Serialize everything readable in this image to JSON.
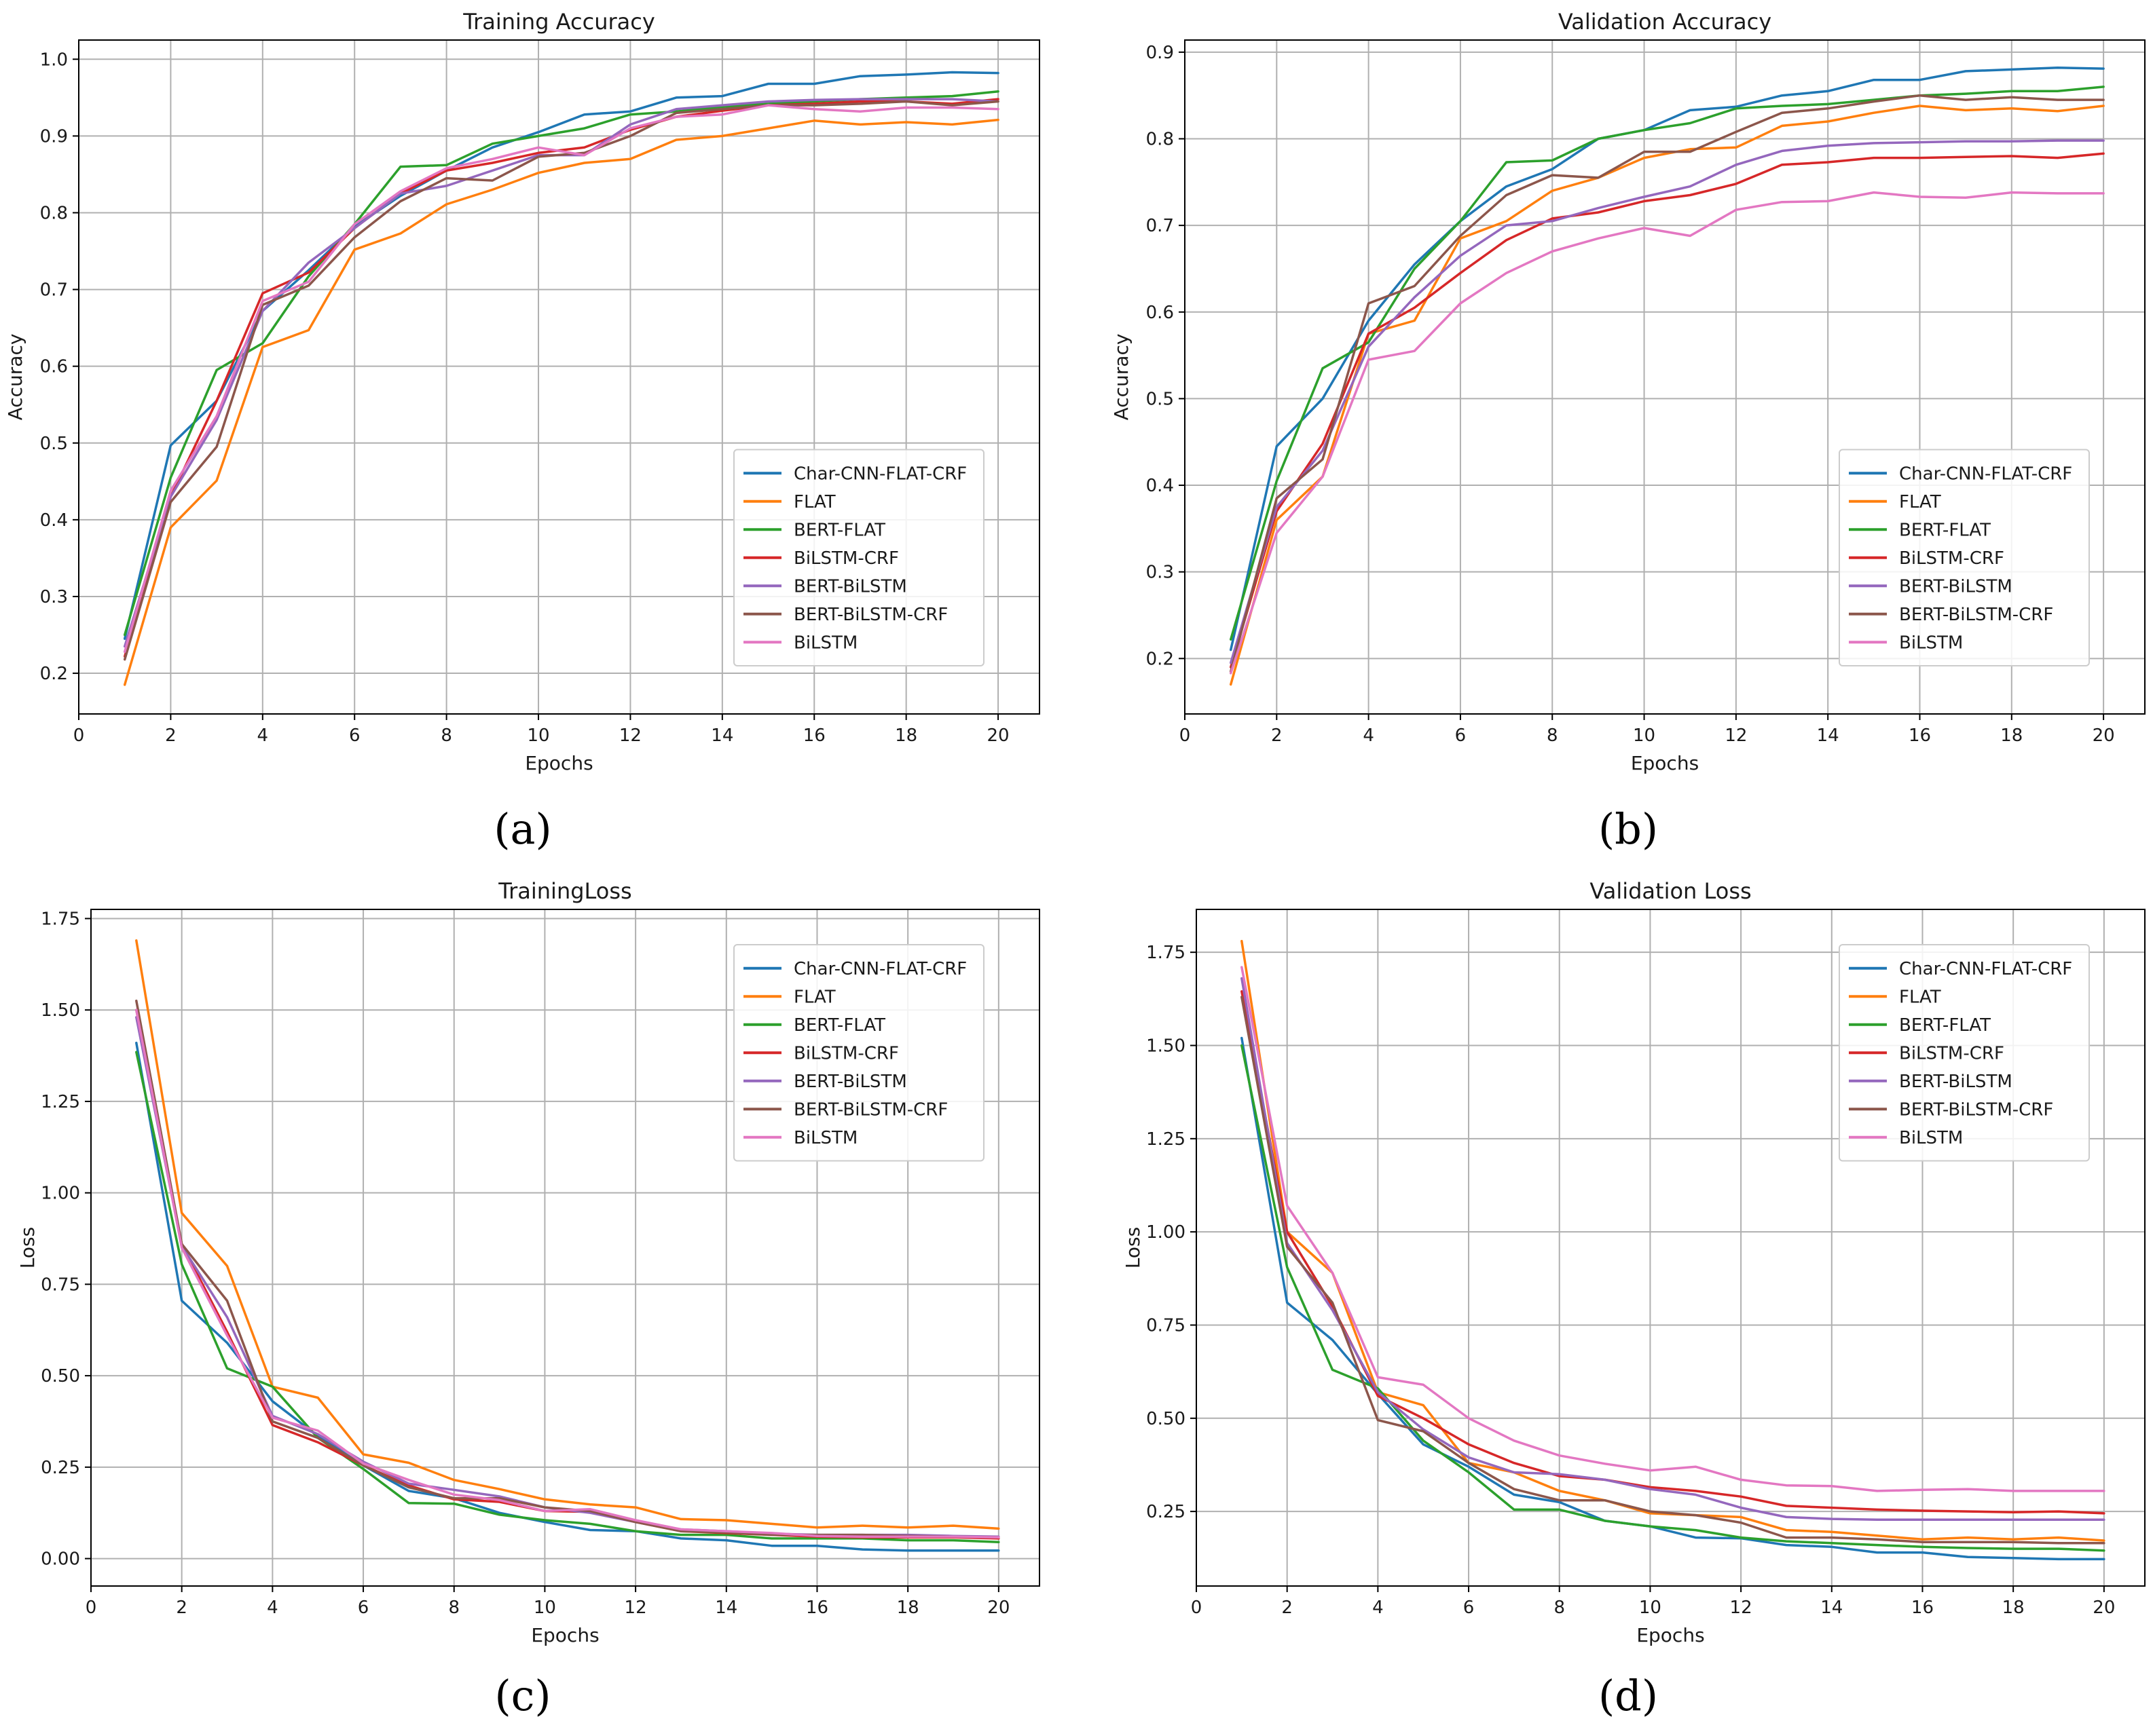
{
  "colors": {
    "Char-CNN-FLAT-CRF": "#1f77b4",
    "FLAT": "#ff7f0e",
    "BERT-FLAT": "#2ca02c",
    "BiLSTM-CRF": "#d62728",
    "BERT-BiLSTM": "#9467bd",
    "BERT-BiLSTM-CRF": "#8c564b",
    "BiLSTM": "#e377c2"
  },
  "panel_labels": [
    "(a)",
    "(b)",
    "(c)",
    "(d)"
  ],
  "chart_data": [
    {
      "type": "line",
      "title": "Training Accuracy",
      "xlabel": "Epochs",
      "ylabel": "Accuracy",
      "xlim": [
        0,
        20.9
      ],
      "ylim": [
        0.147,
        1.025
      ],
      "xticks": [
        0,
        2,
        4,
        6,
        8,
        10,
        12,
        14,
        16,
        18,
        20
      ],
      "yticks": [
        0.2,
        0.3,
        0.4,
        0.5,
        0.6,
        0.7,
        0.8,
        0.9,
        1.0
      ],
      "ytick_labels": [
        "0.2",
        "0.3",
        "0.4",
        "0.5",
        "0.6",
        "0.7",
        "0.8",
        "0.9",
        "1.0"
      ],
      "legend_position": "center-right",
      "x": [
        1,
        2,
        3,
        4,
        5,
        6,
        7,
        8,
        9,
        10,
        11,
        12,
        13,
        14,
        15,
        16,
        17,
        18,
        19,
        20
      ],
      "series": [
        {
          "name": "Char-CNN-FLAT-CRF",
          "values": [
            0.245,
            0.497,
            0.555,
            0.672,
            0.725,
            0.782,
            0.822,
            0.855,
            0.885,
            0.905,
            0.928,
            0.932,
            0.95,
            0.952,
            0.968,
            0.968,
            0.978,
            0.98,
            0.983,
            0.982
          ]
        },
        {
          "name": "FLAT",
          "values": [
            0.185,
            0.39,
            0.451,
            0.625,
            0.647,
            0.752,
            0.773,
            0.811,
            0.83,
            0.852,
            0.865,
            0.87,
            0.895,
            0.9,
            0.91,
            0.92,
            0.915,
            0.918,
            0.915,
            0.921
          ]
        },
        {
          "name": "BERT-FLAT",
          "values": [
            0.25,
            0.455,
            0.595,
            0.63,
            0.717,
            0.785,
            0.86,
            0.862,
            0.89,
            0.9,
            0.91,
            0.928,
            0.932,
            0.938,
            0.942,
            0.945,
            0.948,
            0.95,
            0.952,
            0.958
          ]
        },
        {
          "name": "BiLSTM-CRF",
          "values": [
            0.222,
            0.43,
            0.555,
            0.695,
            0.722,
            0.78,
            0.825,
            0.855,
            0.865,
            0.878,
            0.885,
            0.908,
            0.925,
            0.933,
            0.94,
            0.942,
            0.945,
            0.945,
            0.942,
            0.948
          ]
        },
        {
          "name": "BERT-BiLSTM",
          "values": [
            0.235,
            0.43,
            0.53,
            0.672,
            0.735,
            0.78,
            0.825,
            0.835,
            0.855,
            0.875,
            0.875,
            0.915,
            0.935,
            0.94,
            0.945,
            0.947,
            0.948,
            0.948,
            0.948,
            0.945
          ]
        },
        {
          "name": "BERT-BiLSTM-CRF",
          "values": [
            0.218,
            0.423,
            0.495,
            0.68,
            0.705,
            0.768,
            0.815,
            0.845,
            0.842,
            0.873,
            0.878,
            0.9,
            0.93,
            0.935,
            0.94,
            0.94,
            0.942,
            0.945,
            0.94,
            0.945
          ]
        },
        {
          "name": "BiLSTM",
          "values": [
            0.228,
            0.438,
            0.535,
            0.685,
            0.71,
            0.785,
            0.828,
            0.858,
            0.87,
            0.885,
            0.875,
            0.91,
            0.925,
            0.928,
            0.94,
            0.935,
            0.932,
            0.937,
            0.937,
            0.935
          ]
        }
      ]
    },
    {
      "type": "line",
      "title": "Validation Accuracy",
      "xlabel": "Epochs",
      "ylabel": "Accuracy",
      "xlim": [
        0,
        20.9
      ],
      "ylim": [
        0.136,
        0.914
      ],
      "xticks": [
        0,
        2,
        4,
        6,
        8,
        10,
        12,
        14,
        16,
        18,
        20
      ],
      "yticks": [
        0.2,
        0.3,
        0.4,
        0.5,
        0.6,
        0.7,
        0.8,
        0.9
      ],
      "ytick_labels": [
        "0.2",
        "0.3",
        "0.4",
        "0.5",
        "0.6",
        "0.7",
        "0.8",
        "0.9"
      ],
      "legend_position": "center-right",
      "x": [
        1,
        2,
        3,
        4,
        5,
        6,
        7,
        8,
        9,
        10,
        11,
        12,
        13,
        14,
        15,
        16,
        17,
        18,
        19,
        20
      ],
      "series": [
        {
          "name": "Char-CNN-FLAT-CRF",
          "values": [
            0.21,
            0.445,
            0.5,
            0.59,
            0.655,
            0.705,
            0.745,
            0.765,
            0.8,
            0.81,
            0.833,
            0.837,
            0.85,
            0.855,
            0.868,
            0.868,
            0.878,
            0.88,
            0.882,
            0.881
          ]
        },
        {
          "name": "FLAT",
          "values": [
            0.17,
            0.36,
            0.41,
            0.575,
            0.59,
            0.685,
            0.705,
            0.74,
            0.755,
            0.778,
            0.788,
            0.79,
            0.815,
            0.82,
            0.83,
            0.838,
            0.833,
            0.835,
            0.832,
            0.838
          ]
        },
        {
          "name": "BERT-FLAT",
          "values": [
            0.222,
            0.405,
            0.535,
            0.565,
            0.65,
            0.705,
            0.773,
            0.775,
            0.8,
            0.81,
            0.818,
            0.835,
            0.838,
            0.84,
            0.845,
            0.85,
            0.852,
            0.855,
            0.855,
            0.86
          ]
        },
        {
          "name": "BiLSTM-CRF",
          "values": [
            0.19,
            0.37,
            0.448,
            0.575,
            0.605,
            0.645,
            0.683,
            0.708,
            0.715,
            0.728,
            0.735,
            0.748,
            0.77,
            0.773,
            0.778,
            0.778,
            0.779,
            0.78,
            0.778,
            0.783
          ]
        },
        {
          "name": "BERT-BiLSTM",
          "values": [
            0.195,
            0.375,
            0.44,
            0.56,
            0.617,
            0.665,
            0.7,
            0.705,
            0.72,
            0.733,
            0.745,
            0.77,
            0.786,
            0.792,
            0.795,
            0.796,
            0.797,
            0.797,
            0.798,
            0.798
          ]
        },
        {
          "name": "BERT-BiLSTM-CRF",
          "values": [
            0.185,
            0.385,
            0.43,
            0.61,
            0.63,
            0.688,
            0.735,
            0.758,
            0.755,
            0.785,
            0.785,
            0.808,
            0.83,
            0.835,
            0.843,
            0.85,
            0.845,
            0.848,
            0.845,
            0.845
          ]
        },
        {
          "name": "BiLSTM",
          "values": [
            0.183,
            0.345,
            0.41,
            0.545,
            0.555,
            0.61,
            0.645,
            0.67,
            0.685,
            0.697,
            0.688,
            0.718,
            0.727,
            0.728,
            0.738,
            0.733,
            0.732,
            0.738,
            0.737,
            0.737
          ]
        }
      ]
    },
    {
      "type": "line",
      "title": "TrainingLoss",
      "xlabel": "Epochs",
      "ylabel": "Loss",
      "xlim": [
        0,
        20.9
      ],
      "ylim": [
        -0.075,
        1.775
      ],
      "xticks": [
        0,
        2,
        4,
        6,
        8,
        10,
        12,
        14,
        16,
        18,
        20
      ],
      "yticks": [
        0.0,
        0.25,
        0.5,
        0.75,
        1.0,
        1.25,
        1.5,
        1.75
      ],
      "ytick_labels": [
        "0.00",
        "0.25",
        "0.50",
        "0.75",
        "1.00",
        "1.25",
        "1.50",
        "1.75"
      ],
      "legend_position": "top-right",
      "x": [
        1,
        2,
        3,
        4,
        5,
        6,
        7,
        8,
        9,
        10,
        11,
        12,
        13,
        14,
        15,
        16,
        17,
        18,
        19,
        20
      ],
      "series": [
        {
          "name": "Char-CNN-FLAT-CRF",
          "values": [
            1.41,
            0.705,
            0.59,
            0.43,
            0.335,
            0.255,
            0.185,
            0.165,
            0.125,
            0.1,
            0.078,
            0.075,
            0.055,
            0.05,
            0.035,
            0.035,
            0.025,
            0.022,
            0.022,
            0.022
          ]
        },
        {
          "name": "FLAT",
          "values": [
            1.69,
            0.945,
            0.8,
            0.47,
            0.44,
            0.285,
            0.262,
            0.215,
            0.19,
            0.162,
            0.148,
            0.14,
            0.108,
            0.105,
            0.095,
            0.085,
            0.09,
            0.085,
            0.09,
            0.082
          ]
        },
        {
          "name": "BERT-FLAT",
          "values": [
            1.385,
            0.805,
            0.52,
            0.47,
            0.33,
            0.245,
            0.152,
            0.15,
            0.12,
            0.105,
            0.095,
            0.075,
            0.065,
            0.065,
            0.055,
            0.055,
            0.055,
            0.05,
            0.05,
            0.045
          ]
        },
        {
          "name": "BiLSTM-CRF",
          "values": [
            1.5,
            0.86,
            0.62,
            0.365,
            0.318,
            0.255,
            0.2,
            0.162,
            0.155,
            0.13,
            0.128,
            0.1,
            0.075,
            0.07,
            0.065,
            0.06,
            0.058,
            0.058,
            0.058,
            0.055
          ]
        },
        {
          "name": "BERT-BiLSTM",
          "values": [
            1.48,
            0.855,
            0.66,
            0.39,
            0.34,
            0.265,
            0.205,
            0.188,
            0.17,
            0.14,
            0.125,
            0.1,
            0.08,
            0.075,
            0.068,
            0.065,
            0.065,
            0.065,
            0.062,
            0.06
          ]
        },
        {
          "name": "BERT-BiLSTM-CRF",
          "values": [
            1.525,
            0.86,
            0.705,
            0.375,
            0.33,
            0.255,
            0.195,
            0.165,
            0.165,
            0.14,
            0.13,
            0.1,
            0.075,
            0.072,
            0.065,
            0.065,
            0.065,
            0.062,
            0.06,
            0.058
          ]
        },
        {
          "name": "BiLSTM",
          "values": [
            1.5,
            0.85,
            0.61,
            0.385,
            0.35,
            0.26,
            0.215,
            0.175,
            0.16,
            0.13,
            0.135,
            0.105,
            0.08,
            0.075,
            0.07,
            0.062,
            0.06,
            0.06,
            0.06,
            0.058
          ]
        }
      ]
    },
    {
      "type": "line",
      "title": "Validation Loss",
      "xlabel": "Epochs",
      "ylabel": "Loss",
      "xlim": [
        0,
        20.9
      ],
      "ylim": [
        0.05,
        1.865
      ],
      "xticks": [
        0,
        2,
        4,
        6,
        8,
        10,
        12,
        14,
        16,
        18,
        20
      ],
      "yticks": [
        0.25,
        0.5,
        0.75,
        1.0,
        1.25,
        1.5,
        1.75
      ],
      "ytick_labels": [
        "0.25",
        "0.50",
        "0.75",
        "1.00",
        "1.25",
        "1.50",
        "1.75"
      ],
      "legend_position": "top-right",
      "x": [
        1,
        2,
        3,
        4,
        5,
        6,
        7,
        8,
        9,
        10,
        11,
        12,
        13,
        14,
        15,
        16,
        17,
        18,
        19,
        20
      ],
      "series": [
        {
          "name": "Char-CNN-FLAT-CRF",
          "values": [
            1.52,
            0.81,
            0.71,
            0.565,
            0.43,
            0.37,
            0.295,
            0.275,
            0.225,
            0.21,
            0.18,
            0.178,
            0.16,
            0.155,
            0.14,
            0.14,
            0.128,
            0.125,
            0.122,
            0.122
          ]
        },
        {
          "name": "FLAT",
          "values": [
            1.78,
            1.0,
            0.89,
            0.57,
            0.535,
            0.38,
            0.355,
            0.305,
            0.28,
            0.245,
            0.24,
            0.235,
            0.2,
            0.195,
            0.185,
            0.175,
            0.18,
            0.175,
            0.18,
            0.172
          ]
        },
        {
          "name": "BERT-FLAT",
          "values": [
            1.5,
            0.905,
            0.63,
            0.58,
            0.44,
            0.355,
            0.255,
            0.255,
            0.225,
            0.21,
            0.2,
            0.18,
            0.17,
            0.165,
            0.16,
            0.155,
            0.152,
            0.15,
            0.15,
            0.145
          ]
        },
        {
          "name": "BiLSTM-CRF",
          "values": [
            1.645,
            1.0,
            0.8,
            0.56,
            0.5,
            0.43,
            0.38,
            0.345,
            0.335,
            0.315,
            0.305,
            0.29,
            0.265,
            0.26,
            0.255,
            0.252,
            0.25,
            0.248,
            0.25,
            0.245
          ]
        },
        {
          "name": "BERT-BiLSTM",
          "values": [
            1.68,
            0.97,
            0.79,
            0.57,
            0.47,
            0.395,
            0.355,
            0.35,
            0.335,
            0.31,
            0.295,
            0.26,
            0.235,
            0.23,
            0.228,
            0.228,
            0.228,
            0.228,
            0.228,
            0.228
          ]
        },
        {
          "name": "BERT-BiLSTM-CRF",
          "values": [
            1.63,
            0.96,
            0.81,
            0.495,
            0.465,
            0.38,
            0.31,
            0.28,
            0.28,
            0.25,
            0.24,
            0.22,
            0.18,
            0.18,
            0.175,
            0.168,
            0.168,
            0.168,
            0.165,
            0.165
          ]
        },
        {
          "name": "BiLSTM",
          "values": [
            1.71,
            1.07,
            0.89,
            0.61,
            0.59,
            0.5,
            0.44,
            0.4,
            0.378,
            0.36,
            0.37,
            0.335,
            0.32,
            0.318,
            0.305,
            0.308,
            0.31,
            0.305,
            0.305,
            0.305
          ]
        }
      ]
    }
  ]
}
